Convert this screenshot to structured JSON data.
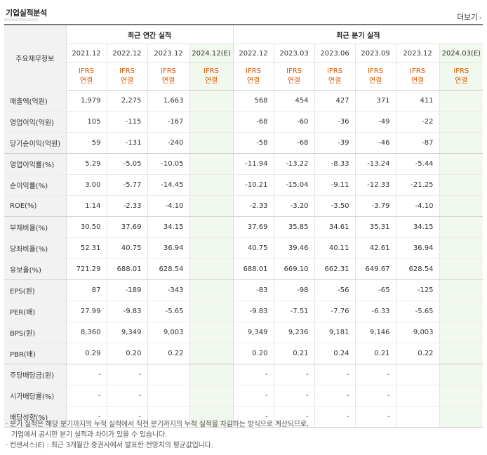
{
  "page": {
    "title": "기업실적분석",
    "more_label": "더보기",
    "more_arrow": "›"
  },
  "table": {
    "corner_label": "주요재무정보",
    "group_annual": "최근 연간 실적",
    "group_quarter": "최근 분기 실적",
    "annual_periods": [
      "2021.12",
      "2022.12",
      "2023.12",
      "2024.12(E)"
    ],
    "quarter_periods": [
      "2022.12",
      "2023.03",
      "2023.06",
      "2023.09",
      "2023.12",
      "2024.03(E)"
    ],
    "ifrs_top": "IFRS",
    "ifrs_bottom": "연결",
    "rows": [
      {
        "label": "매출액(억원)",
        "annual": [
          "1,979",
          "2,275",
          "1,663",
          ""
        ],
        "quarter": [
          "568",
          "454",
          "427",
          "371",
          "411",
          ""
        ]
      },
      {
        "label": "영업이익(억원)",
        "annual": [
          "105",
          "-115",
          "-167",
          ""
        ],
        "quarter": [
          "-68",
          "-60",
          "-36",
          "-49",
          "-22",
          ""
        ]
      },
      {
        "label": "당기순이익(억원)",
        "annual": [
          "59",
          "-131",
          "-240",
          ""
        ],
        "quarter": [
          "-58",
          "-68",
          "-39",
          "-46",
          "-87",
          ""
        ]
      },
      {
        "label": "영업이익률(%)",
        "annual": [
          "5.29",
          "-5.05",
          "-10.05",
          ""
        ],
        "quarter": [
          "-11.94",
          "-13.22",
          "-8.33",
          "-13.24",
          "-5.44",
          ""
        ]
      },
      {
        "label": "순이익률(%)",
        "annual": [
          "3.00",
          "-5.77",
          "-14.45",
          ""
        ],
        "quarter": [
          "-10.21",
          "-15.04",
          "-9.11",
          "-12.33",
          "-21.25",
          ""
        ]
      },
      {
        "label": "ROE(%)",
        "annual": [
          "1.14",
          "-2.33",
          "-4.10",
          ""
        ],
        "quarter": [
          "-2.33",
          "-3.20",
          "-3.50",
          "-3.79",
          "-4.10",
          ""
        ]
      },
      {
        "label": "부채비율(%)",
        "annual": [
          "30.50",
          "37.69",
          "34.15",
          ""
        ],
        "quarter": [
          "37.69",
          "35.85",
          "34.61",
          "35.31",
          "34.15",
          ""
        ]
      },
      {
        "label": "당좌비율(%)",
        "annual": [
          "52.31",
          "40.75",
          "36.94",
          ""
        ],
        "quarter": [
          "40.75",
          "39.46",
          "40.11",
          "42.61",
          "36.94",
          ""
        ]
      },
      {
        "label": "유보율(%)",
        "annual": [
          "721.29",
          "688.01",
          "628.54",
          ""
        ],
        "quarter": [
          "688.01",
          "669.10",
          "662.31",
          "649.67",
          "628.54",
          ""
        ]
      },
      {
        "label": "EPS(원)",
        "annual": [
          "87",
          "-189",
          "-343",
          ""
        ],
        "quarter": [
          "-83",
          "-98",
          "-56",
          "-65",
          "-125",
          ""
        ]
      },
      {
        "label": "PER(배)",
        "annual": [
          "27.99",
          "-9.83",
          "-5.65",
          ""
        ],
        "quarter": [
          "-9.83",
          "-7.51",
          "-7.76",
          "-6.33",
          "-5.65",
          ""
        ]
      },
      {
        "label": "BPS(원)",
        "annual": [
          "8,360",
          "9,349",
          "9,003",
          ""
        ],
        "quarter": [
          "9,349",
          "9,236",
          "9,181",
          "9,146",
          "9,003",
          ""
        ]
      },
      {
        "label": "PBR(배)",
        "annual": [
          "0.29",
          "0.20",
          "0.22",
          ""
        ],
        "quarter": [
          "0.20",
          "0.21",
          "0.24",
          "0.21",
          "0.22",
          ""
        ]
      },
      {
        "label": "주당배당금(원)",
        "annual": [
          "-",
          "-",
          "",
          ""
        ],
        "quarter": [
          "-",
          "-",
          "-",
          "-",
          "",
          ""
        ]
      },
      {
        "label": "시가배당률(%)",
        "annual": [
          "-",
          "-",
          "",
          ""
        ],
        "quarter": [
          "-",
          "-",
          "-",
          "-",
          "",
          ""
        ]
      },
      {
        "label": "배당성향(%)",
        "annual": [
          "-",
          "-",
          "",
          ""
        ],
        "quarter": [
          "-",
          "-",
          "-",
          "-",
          "",
          ""
        ]
      }
    ]
  },
  "notes": {
    "line1": "· 분기 실적은 해당 분기까지의 누적 실적에서 직전 분기까지의 누적 실적을 차감하는 방식으로 계산되므로,",
    "line2": "기업에서 공시한 분기 실적과 차이가 있을 수 있습니다.",
    "line3": "· 컨센서스(E) : 최근 3개월간 증권사에서 발표한 전망치의 평균값입니다."
  },
  "colors": {
    "ifrs": "#e05a00",
    "negative": "#e02020",
    "estimate_bg": "#f1f8ed",
    "label_bg": "#f2f2f2"
  }
}
